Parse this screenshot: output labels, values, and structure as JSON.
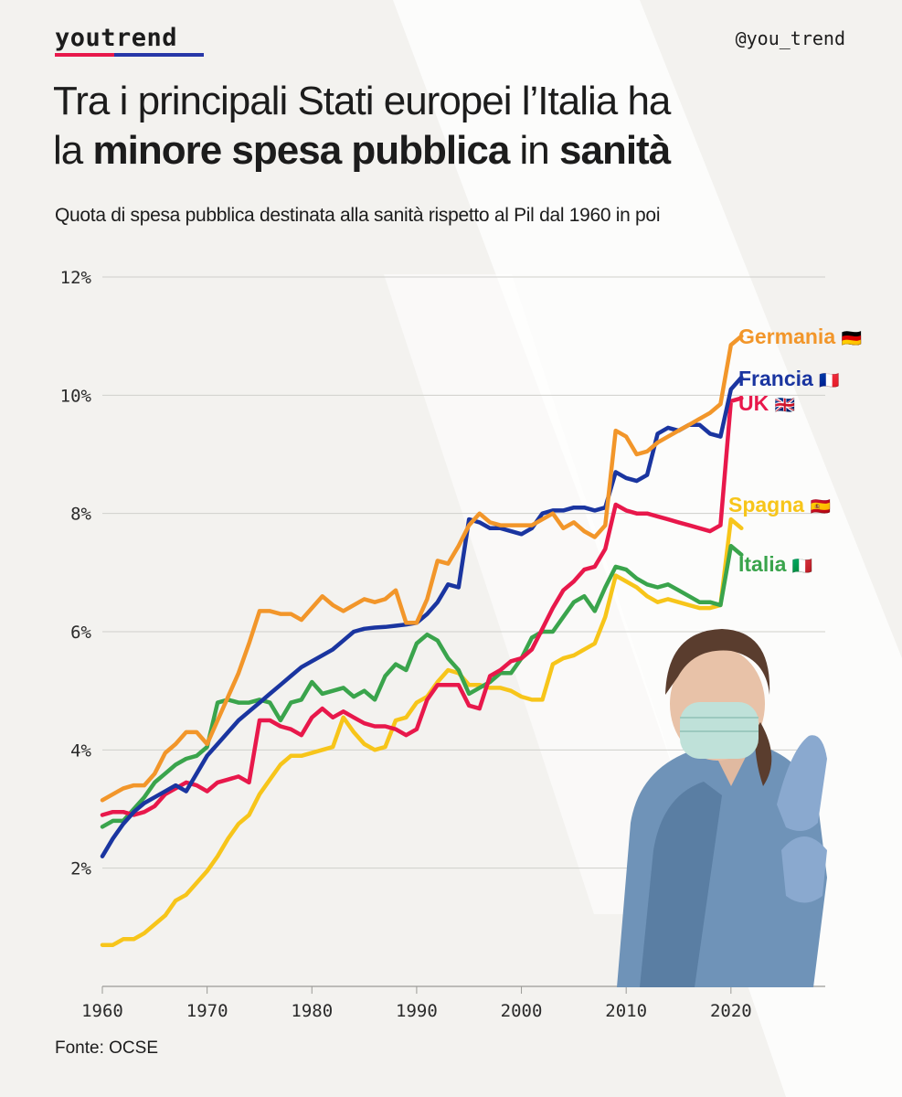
{
  "brand": "youtrend",
  "handle": "@you_trend",
  "title": {
    "line1": "Tra i principali Stati europei l’Italia ha",
    "line2_part1": "la ",
    "line2_bold1": "minore spesa pubblica",
    "line2_part2": " in ",
    "line2_bold2": "sanità"
  },
  "subtitle": "Quota di spesa pubblica destinata alla sanità rispetto al Pil dal 1960 in poi",
  "source": "Fonte: OCSE",
  "colors": {
    "Germania": "#f2962a",
    "Francia": "#1a35a0",
    "UK": "#e8184b",
    "Spagna": "#f7c51a",
    "Italia": "#3aa44c",
    "background": "#f3f2ef",
    "watermark": "#ffffff"
  },
  "chart_data": {
    "type": "line",
    "xlim": [
      1960,
      2029
    ],
    "ylim": [
      0,
      12
    ],
    "x_ticks": [
      1960,
      1970,
      1980,
      1990,
      2000,
      2010,
      2020
    ],
    "x_tick_labels": [
      "1960",
      "1970",
      "1980",
      "1990",
      "2000",
      "2010",
      "2020"
    ],
    "y_ticks": [
      2,
      4,
      6,
      8,
      10,
      12
    ],
    "y_tick_labels": [
      "2%",
      "4%",
      "6%",
      "8%",
      "10%",
      "12%"
    ],
    "grid": "horizontal",
    "series": [
      {
        "name": "Germania",
        "flag": "🇩🇪",
        "color": "#f2962a",
        "x": [
          1960,
          1961,
          1962,
          1963,
          1964,
          1965,
          1966,
          1967,
          1968,
          1969,
          1970,
          1971,
          1972,
          1973,
          1974,
          1975,
          1976,
          1977,
          1978,
          1979,
          1980,
          1981,
          1982,
          1983,
          1984,
          1985,
          1986,
          1987,
          1988,
          1989,
          1990,
          1991,
          1992,
          1993,
          1994,
          1995,
          1996,
          1997,
          1998,
          1999,
          2000,
          2001,
          2002,
          2003,
          2004,
          2005,
          2006,
          2007,
          2008,
          2009,
          2010,
          2011,
          2012,
          2013,
          2014,
          2015,
          2016,
          2017,
          2018,
          2019,
          2020,
          2021
        ],
        "y": [
          3.15,
          3.25,
          3.35,
          3.4,
          3.4,
          3.6,
          3.95,
          4.1,
          4.3,
          4.3,
          4.1,
          4.5,
          4.9,
          5.3,
          5.8,
          6.35,
          6.35,
          6.3,
          6.3,
          6.2,
          6.4,
          6.6,
          6.45,
          6.35,
          6.45,
          6.55,
          6.5,
          6.55,
          6.7,
          6.15,
          6.15,
          6.55,
          7.2,
          7.15,
          7.45,
          7.8,
          8.0,
          7.85,
          7.8,
          7.8,
          7.8,
          7.8,
          7.9,
          8.0,
          7.75,
          7.85,
          7.7,
          7.6,
          7.8,
          9.4,
          9.3,
          9.0,
          9.05,
          9.2,
          9.3,
          9.4,
          9.5,
          9.6,
          9.7,
          9.85,
          10.85,
          11.0
        ]
      },
      {
        "name": "Francia",
        "flag": "🇫🇷",
        "color": "#1a35a0",
        "x": [
          1960,
          1961,
          1962,
          1963,
          1964,
          1965,
          1966,
          1967,
          1968,
          1969,
          1970,
          1971,
          1972,
          1973,
          1974,
          1975,
          1976,
          1977,
          1978,
          1979,
          1980,
          1981,
          1982,
          1983,
          1984,
          1985,
          1986,
          1987,
          1988,
          1989,
          1990,
          1991,
          1992,
          1993,
          1994,
          1995,
          1996,
          1997,
          1998,
          1999,
          2000,
          2001,
          2002,
          2003,
          2004,
          2005,
          2006,
          2007,
          2008,
          2009,
          2010,
          2011,
          2012,
          2013,
          2014,
          2015,
          2016,
          2017,
          2018,
          2019,
          2020,
          2021
        ],
        "y": [
          2.2,
          2.5,
          2.75,
          2.95,
          3.1,
          3.2,
          3.3,
          3.4,
          3.3,
          3.6,
          3.9,
          4.1,
          4.3,
          4.5,
          4.65,
          4.8,
          4.95,
          5.1,
          5.25,
          5.4,
          5.5,
          5.6,
          5.7,
          5.85,
          6.0,
          6.05,
          6.07,
          6.08,
          6.1,
          6.12,
          6.15,
          6.3,
          6.5,
          6.8,
          6.75,
          7.9,
          7.85,
          7.75,
          7.75,
          7.7,
          7.65,
          7.75,
          8.0,
          8.05,
          8.05,
          8.1,
          8.1,
          8.05,
          8.1,
          8.7,
          8.6,
          8.55,
          8.65,
          9.35,
          9.45,
          9.4,
          9.5,
          9.5,
          9.35,
          9.3,
          10.1,
          10.3
        ]
      },
      {
        "name": "UK",
        "flag": "🇬🇧",
        "color": "#e8184b",
        "x": [
          1960,
          1961,
          1962,
          1963,
          1964,
          1965,
          1966,
          1967,
          1968,
          1969,
          1970,
          1971,
          1972,
          1973,
          1974,
          1975,
          1976,
          1977,
          1978,
          1979,
          1980,
          1981,
          1982,
          1983,
          1984,
          1985,
          1986,
          1987,
          1988,
          1989,
          1990,
          1991,
          1992,
          1993,
          1994,
          1995,
          1996,
          1997,
          1998,
          1999,
          2000,
          2001,
          2002,
          2003,
          2004,
          2005,
          2006,
          2007,
          2008,
          2009,
          2010,
          2011,
          2012,
          2013,
          2014,
          2015,
          2016,
          2017,
          2018,
          2019,
          2020,
          2021
        ],
        "y": [
          2.9,
          2.95,
          2.95,
          2.9,
          2.95,
          3.05,
          3.25,
          3.35,
          3.45,
          3.4,
          3.3,
          3.45,
          3.5,
          3.55,
          3.45,
          4.5,
          4.5,
          4.4,
          4.35,
          4.25,
          4.55,
          4.7,
          4.55,
          4.65,
          4.55,
          4.45,
          4.4,
          4.4,
          4.35,
          4.25,
          4.35,
          4.85,
          5.1,
          5.1,
          5.1,
          4.75,
          4.7,
          5.25,
          5.35,
          5.5,
          5.55,
          5.7,
          6.05,
          6.4,
          6.7,
          6.85,
          7.05,
          7.1,
          7.4,
          8.15,
          8.05,
          8.0,
          8.0,
          7.95,
          7.9,
          7.85,
          7.8,
          7.75,
          7.7,
          7.8,
          9.9,
          9.95
        ]
      },
      {
        "name": "Spagna",
        "flag": "🇪🇸",
        "color": "#f7c51a",
        "x": [
          1960,
          1961,
          1962,
          1963,
          1964,
          1965,
          1966,
          1967,
          1968,
          1969,
          1970,
          1971,
          1972,
          1973,
          1974,
          1975,
          1976,
          1977,
          1978,
          1979,
          1980,
          1981,
          1982,
          1983,
          1984,
          1985,
          1986,
          1987,
          1988,
          1989,
          1990,
          1991,
          1992,
          1993,
          1994,
          1995,
          1996,
          1997,
          1998,
          1999,
          2000,
          2001,
          2002,
          2003,
          2004,
          2005,
          2006,
          2007,
          2008,
          2009,
          2010,
          2011,
          2012,
          2013,
          2014,
          2015,
          2016,
          2017,
          2018,
          2019,
          2020,
          2021
        ],
        "y": [
          0.7,
          0.7,
          0.8,
          0.8,
          0.9,
          1.05,
          1.2,
          1.45,
          1.55,
          1.75,
          1.95,
          2.2,
          2.5,
          2.75,
          2.9,
          3.25,
          3.5,
          3.75,
          3.9,
          3.9,
          3.95,
          4.0,
          4.05,
          4.55,
          4.3,
          4.1,
          4.0,
          4.05,
          4.5,
          4.55,
          4.8,
          4.9,
          5.15,
          5.35,
          5.3,
          5.1,
          5.1,
          5.05,
          5.05,
          5.0,
          4.9,
          4.85,
          4.85,
          5.45,
          5.55,
          5.6,
          5.7,
          5.8,
          6.25,
          6.95,
          6.85,
          6.75,
          6.6,
          6.5,
          6.55,
          6.5,
          6.45,
          6.4,
          6.4,
          6.45,
          7.9,
          7.75
        ]
      },
      {
        "name": "Italia",
        "flag": "🇮🇹",
        "color": "#3aa44c",
        "x": [
          1960,
          1961,
          1962,
          1963,
          1964,
          1965,
          1966,
          1967,
          1968,
          1969,
          1970,
          1971,
          1972,
          1973,
          1974,
          1975,
          1976,
          1977,
          1978,
          1979,
          1980,
          1981,
          1982,
          1983,
          1984,
          1985,
          1986,
          1987,
          1988,
          1989,
          1990,
          1991,
          1992,
          1993,
          1994,
          1995,
          1996,
          1997,
          1998,
          1999,
          2000,
          2001,
          2002,
          2003,
          2004,
          2005,
          2006,
          2007,
          2008,
          2009,
          2010,
          2011,
          2012,
          2013,
          2014,
          2015,
          2016,
          2017,
          2018,
          2019,
          2020,
          2021
        ],
        "y": [
          2.7,
          2.8,
          2.8,
          3.0,
          3.2,
          3.45,
          3.6,
          3.75,
          3.85,
          3.9,
          4.05,
          4.8,
          4.85,
          4.8,
          4.8,
          4.85,
          4.8,
          4.5,
          4.8,
          4.85,
          5.15,
          4.95,
          5.0,
          5.05,
          4.9,
          5.0,
          4.85,
          5.25,
          5.45,
          5.35,
          5.8,
          5.95,
          5.85,
          5.55,
          5.35,
          4.95,
          5.05,
          5.15,
          5.3,
          5.3,
          5.55,
          5.9,
          6.0,
          6.0,
          6.25,
          6.5,
          6.6,
          6.35,
          6.75,
          7.1,
          7.05,
          6.9,
          6.8,
          6.75,
          6.8,
          6.7,
          6.6,
          6.5,
          6.5,
          6.45,
          7.45,
          7.3
        ]
      }
    ]
  }
}
